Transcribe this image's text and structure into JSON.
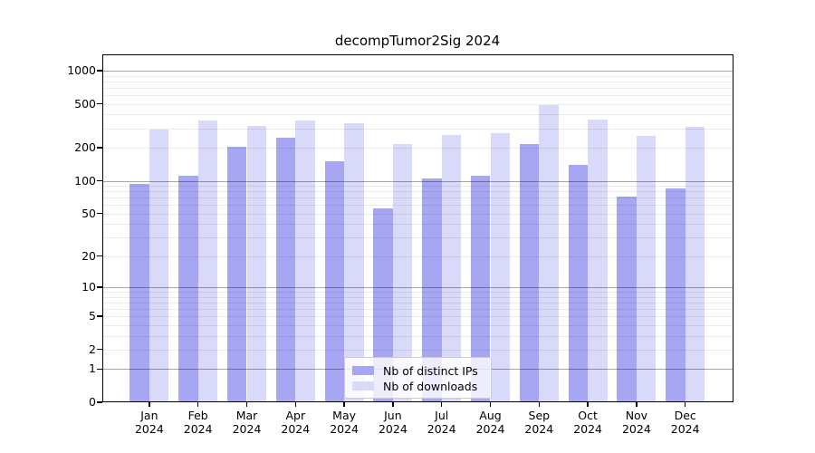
{
  "chart_data": {
    "type": "bar",
    "title": "decompTumor2Sig 2024",
    "categories": [
      "Jan 2024",
      "Feb 2024",
      "Mar 2024",
      "Apr 2024",
      "May 2024",
      "Jun 2024",
      "Jul 2024",
      "Aug 2024",
      "Sep 2024",
      "Oct 2024",
      "Nov 2024",
      "Dec 2024"
    ],
    "series": [
      {
        "name": "Nb of distinct IPs",
        "color": "#a6a6f2",
        "values": [
          93,
          112,
          205,
          245,
          150,
          56,
          105,
          112,
          218,
          140,
          72,
          85
        ]
      },
      {
        "name": "Nb of downloads",
        "color": "#d9d9fa",
        "values": [
          290,
          355,
          315,
          355,
          335,
          215,
          260,
          272,
          487,
          360,
          255,
          310
        ]
      }
    ],
    "xlabel": "",
    "ylabel": "",
    "yticks": [
      0,
      1,
      2,
      5,
      10,
      20,
      50,
      100,
      200,
      500,
      1000
    ],
    "yscale": "log10(value+1), 0 at baseline",
    "ylim": [
      0,
      1400
    ],
    "grid": {
      "major_lines": [
        1,
        10,
        100,
        1000
      ],
      "minor_multiples": [
        2,
        3,
        4,
        5,
        6,
        7,
        8,
        9
      ]
    },
    "legend": {
      "position": "inside-bottom-center"
    },
    "colors": {
      "major_grid": "rgba(0,0,0,0.35)",
      "minor_grid": "rgba(0,0,0,0.08)",
      "frame": "#000000",
      "background": "#ffffff",
      "text": "#000000"
    }
  }
}
